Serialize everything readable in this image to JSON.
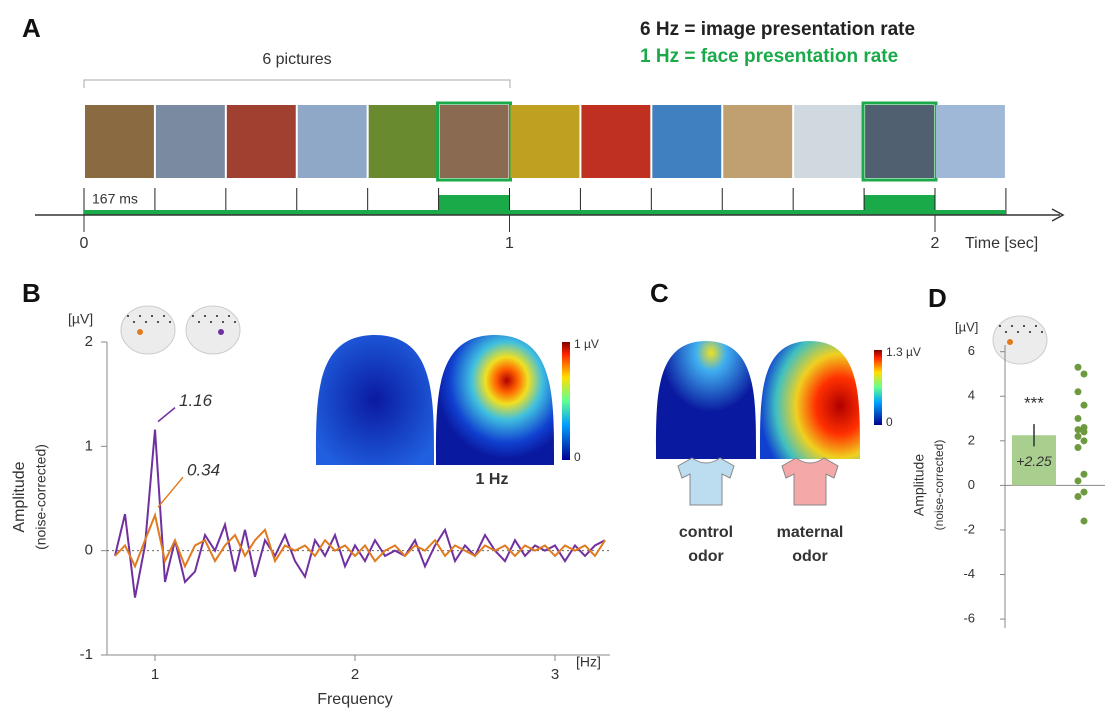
{
  "panel_labels": [
    "A",
    "B",
    "C",
    "D"
  ],
  "panel_a": {
    "rates": [
      {
        "text": "6 Hz = image presentation rate",
        "color": "#222222"
      },
      {
        "text": "1 Hz = face presentation rate",
        "color": "#1aaa4a"
      }
    ],
    "bracket_label": "6 pictures",
    "interval_label": "167 ms",
    "time_ticks": [
      0,
      1,
      2
    ],
    "time_label": "Time [sec]"
  },
  "panel_b_maps": {
    "colorbar_max": "1 µV",
    "colorbar_min": "0",
    "caption": "1 Hz"
  },
  "panel_c": {
    "colorbar_max": "1.3 µV",
    "colorbar_min": "0",
    "conditions": [
      [
        "control",
        "odor"
      ],
      [
        "maternal",
        "odor"
      ]
    ]
  },
  "chart_data": [
    {
      "type": "line",
      "y_unit": "[µV]",
      "y_label": "Amplitude",
      "y_sublabel": "(noise-corrected)",
      "x_label": "Frequency",
      "x_unit": "[Hz]",
      "xlim": [
        0.76,
        3.275
      ],
      "ylim": [
        -1,
        2
      ],
      "xticks": [
        1,
        2,
        3
      ],
      "yticks": [
        -1,
        0,
        1,
        2
      ],
      "zero_line": true,
      "x": [
        0.8,
        0.85,
        0.9,
        0.95,
        1.0,
        1.05,
        1.1,
        1.15,
        1.2,
        1.25,
        1.3,
        1.35,
        1.4,
        1.45,
        1.5,
        1.55,
        1.6,
        1.65,
        1.7,
        1.75,
        1.8,
        1.85,
        1.9,
        1.95,
        2.0,
        2.05,
        2.1,
        2.15,
        2.2,
        2.25,
        2.3,
        2.35,
        2.4,
        2.45,
        2.5,
        2.55,
        2.6,
        2.65,
        2.7,
        2.75,
        2.8,
        2.85,
        2.9,
        2.95,
        3.0,
        3.05,
        3.1,
        3.15,
        3.2,
        3.25
      ],
      "series": [
        {
          "color": "#7030a0",
          "values": [
            -0.05,
            0.35,
            -0.45,
            0.05,
            1.16,
            -0.3,
            0.1,
            -0.3,
            -0.2,
            0.15,
            0.0,
            0.25,
            -0.2,
            0.2,
            -0.25,
            0.1,
            -0.05,
            0.15,
            -0.1,
            -0.25,
            0.1,
            -0.05,
            0.15,
            -0.15,
            0.05,
            -0.1,
            0.1,
            -0.05,
            0.0,
            -0.05,
            0.1,
            -0.15,
            0.05,
            0.2,
            -0.1,
            0.05,
            -0.05,
            0.15,
            0.0,
            -0.1,
            0.1,
            -0.05,
            0.05,
            0.0,
            0.05,
            -0.1,
            0.05,
            -0.05,
            0.05,
            0.1
          ]
        },
        {
          "color": "#e07b20",
          "values": [
            -0.05,
            0.05,
            -0.15,
            0.1,
            0.34,
            -0.1,
            0.1,
            -0.15,
            0.05,
            0.1,
            -0.1,
            0.05,
            0.15,
            -0.05,
            0.1,
            0.2,
            -0.1,
            0.05,
            0.0,
            0.05,
            -0.05,
            0.1,
            0.0,
            0.05,
            -0.05,
            0.05,
            -0.1,
            0.0,
            0.05,
            -0.05,
            0.05,
            0.0,
            0.1,
            -0.05,
            0.05,
            0.0,
            -0.05,
            0.05,
            0.0,
            0.05,
            -0.05,
            0.05,
            0.0,
            0.05,
            -0.05,
            0.05,
            0.0,
            0.05,
            -0.05,
            0.1
          ]
        }
      ],
      "annotations": [
        {
          "series": 0,
          "x": 1.0,
          "value": 1.16
        },
        {
          "series": 1,
          "x": 1.0,
          "value": 0.34
        }
      ]
    },
    {
      "type": "bar",
      "y_unit": "[µV]",
      "y_label": "Amplitude",
      "y_sublabel": "(noise-corrected)",
      "ylim": [
        -6.4,
        6.3
      ],
      "yticks": [
        -6,
        -4,
        -2,
        0,
        2,
        4,
        6
      ],
      "values": [
        2.25
      ],
      "value_labels": [
        "+2.25"
      ],
      "errors": [
        0.5
      ],
      "significance": [
        "***"
      ],
      "color": "#a9cf8e",
      "point_color": "#6e9a3f",
      "points": [
        5.3,
        5.0,
        4.2,
        3.6,
        3.0,
        2.6,
        2.5,
        2.4,
        2.2,
        2.0,
        1.7,
        0.5,
        0.2,
        -0.3,
        -0.5,
        -1.6
      ]
    }
  ]
}
